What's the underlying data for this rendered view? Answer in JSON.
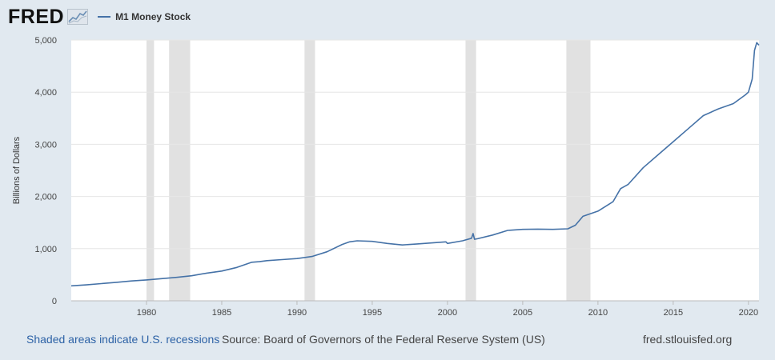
{
  "header": {
    "logo": "FRED",
    "legend_label": "M1 Money Stock"
  },
  "footer": {
    "recessions_note": "Shaded areas indicate U.S. recessions",
    "source": "Source: Board of Governors of the Federal Reserve System (US)",
    "site": "fred.stlouisfed.org"
  },
  "colors": {
    "line": "#4572a7",
    "recession": "#e1e1e1",
    "background": "#e1e9f0",
    "plot_bg": "#ffffff"
  },
  "chart_data": {
    "type": "line",
    "title": "M1 Money Stock",
    "xlabel": "",
    "ylabel": "Billions of Dollars",
    "xlim": [
      1975.0,
      2020.7
    ],
    "ylim": [
      0,
      5000
    ],
    "yticks": [
      0,
      1000,
      2000,
      3000,
      4000,
      5000
    ],
    "ytick_labels": [
      "0",
      "1,000",
      "2,000",
      "3,000",
      "4,000",
      "5,000"
    ],
    "xticks": [
      1980,
      1985,
      1990,
      1995,
      2000,
      2005,
      2010,
      2015,
      2020
    ],
    "xtick_labels": [
      "1980",
      "1985",
      "1990",
      "1995",
      "2000",
      "2005",
      "2010",
      "2015",
      "2020"
    ],
    "recessions": [
      [
        1980.0,
        1980.5
      ],
      [
        1981.5,
        1982.9
      ],
      [
        1990.5,
        1991.2
      ],
      [
        2001.2,
        2001.9
      ],
      [
        2007.9,
        2009.5
      ]
    ],
    "series": [
      {
        "name": "M1 Money Stock",
        "x": [
          1975.0,
          1976.0,
          1977.0,
          1978.0,
          1979.0,
          1980.0,
          1981.0,
          1982.0,
          1983.0,
          1984.0,
          1985.0,
          1986.0,
          1987.0,
          1987.5,
          1988.0,
          1989.0,
          1990.0,
          1991.0,
          1992.0,
          1993.0,
          1993.5,
          1994.0,
          1995.0,
          1996.0,
          1997.0,
          1998.0,
          1999.0,
          1999.9,
          2000.0,
          2001.0,
          2001.6,
          2001.7,
          2001.8,
          2002.0,
          2003.0,
          2004.0,
          2005.0,
          2006.0,
          2007.0,
          2008.0,
          2008.5,
          2009.0,
          2010.0,
          2011.0,
          2011.5,
          2012.0,
          2013.0,
          2014.0,
          2015.0,
          2016.0,
          2017.0,
          2018.0,
          2019.0,
          2019.8,
          2020.0,
          2020.1,
          2020.25,
          2020.4,
          2020.55,
          2020.7
        ],
        "values": [
          287,
          305,
          330,
          355,
          380,
          400,
          425,
          450,
          480,
          530,
          570,
          640,
          740,
          750,
          770,
          790,
          810,
          850,
          940,
          1080,
          1130,
          1150,
          1140,
          1100,
          1070,
          1090,
          1110,
          1130,
          1100,
          1150,
          1200,
          1290,
          1180,
          1190,
          1260,
          1350,
          1370,
          1375,
          1370,
          1380,
          1450,
          1620,
          1720,
          1900,
          2150,
          2230,
          2550,
          2800,
          3050,
          3300,
          3550,
          3680,
          3780,
          3950,
          4000,
          4100,
          4250,
          4800,
          4950,
          4900
        ]
      }
    ]
  }
}
